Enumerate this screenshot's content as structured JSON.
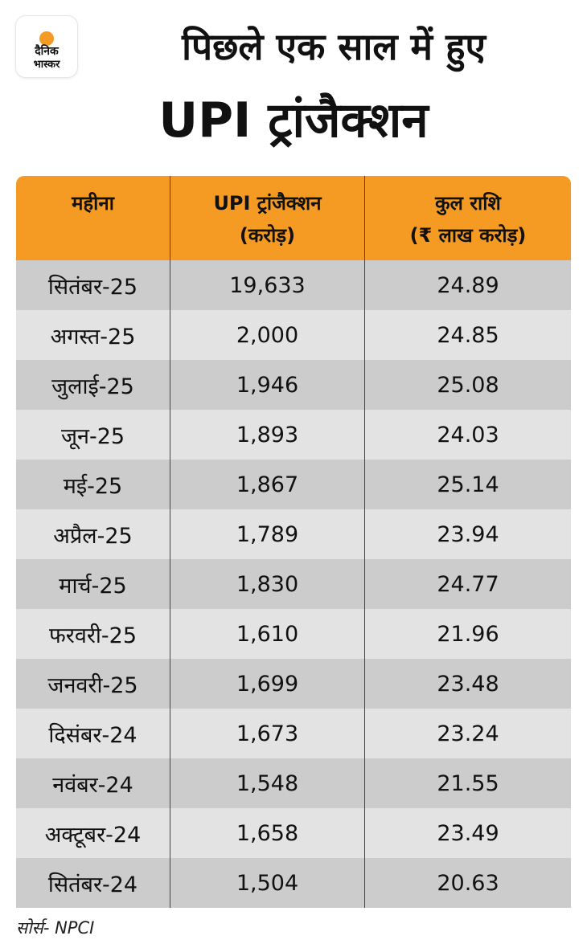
{
  "logo": {
    "line1": "दैनिक",
    "line2": "भास्कर",
    "sun_color": "#f59b23"
  },
  "header": {
    "title_line1": "पिछले एक साल में हुए",
    "title_line2": "UPI ट्रांजैक्शन"
  },
  "chart_data": {
    "type": "table",
    "columns": [
      {
        "line1": "महीना",
        "line2": ""
      },
      {
        "line1": "UPI ट्रांजैक्शन",
        "line2": "(करोड़)"
      },
      {
        "line1": "कुल राशि",
        "line2": "(₹ लाख करोड़)"
      }
    ],
    "rows": [
      {
        "month": "सितंबर-25",
        "transactions": "19,633",
        "amount": "24.89"
      },
      {
        "month": "अगस्त-25",
        "transactions": "2,000",
        "amount": "24.85"
      },
      {
        "month": "जुलाई-25",
        "transactions": "1,946",
        "amount": "25.08"
      },
      {
        "month": "जून-25",
        "transactions": "1,893",
        "amount": "24.03"
      },
      {
        "month": "मई-25",
        "transactions": "1,867",
        "amount": "25.14"
      },
      {
        "month": "अप्रैल-25",
        "transactions": "1,789",
        "amount": "23.94"
      },
      {
        "month": "मार्च-25",
        "transactions": "1,830",
        "amount": "24.77"
      },
      {
        "month": "फरवरी-25",
        "transactions": "1,610",
        "amount": "21.96"
      },
      {
        "month": "जनवरी-25",
        "transactions": "1,699",
        "amount": "23.48"
      },
      {
        "month": "दिसंबर-24",
        "transactions": "1,673",
        "amount": "23.24"
      },
      {
        "month": "नवंबर-24",
        "transactions": "1,548",
        "amount": "21.55"
      },
      {
        "month": "अक्टूबर-24",
        "transactions": "1,658",
        "amount": "23.49"
      },
      {
        "month": "सितंबर-24",
        "transactions": "1,504",
        "amount": "20.63"
      }
    ]
  },
  "footer": {
    "source": "सोर्स- NPCI"
  },
  "colors": {
    "header_bg": "#f59b23",
    "row_dark": "#cccccc",
    "row_light": "#e3e3e3"
  }
}
